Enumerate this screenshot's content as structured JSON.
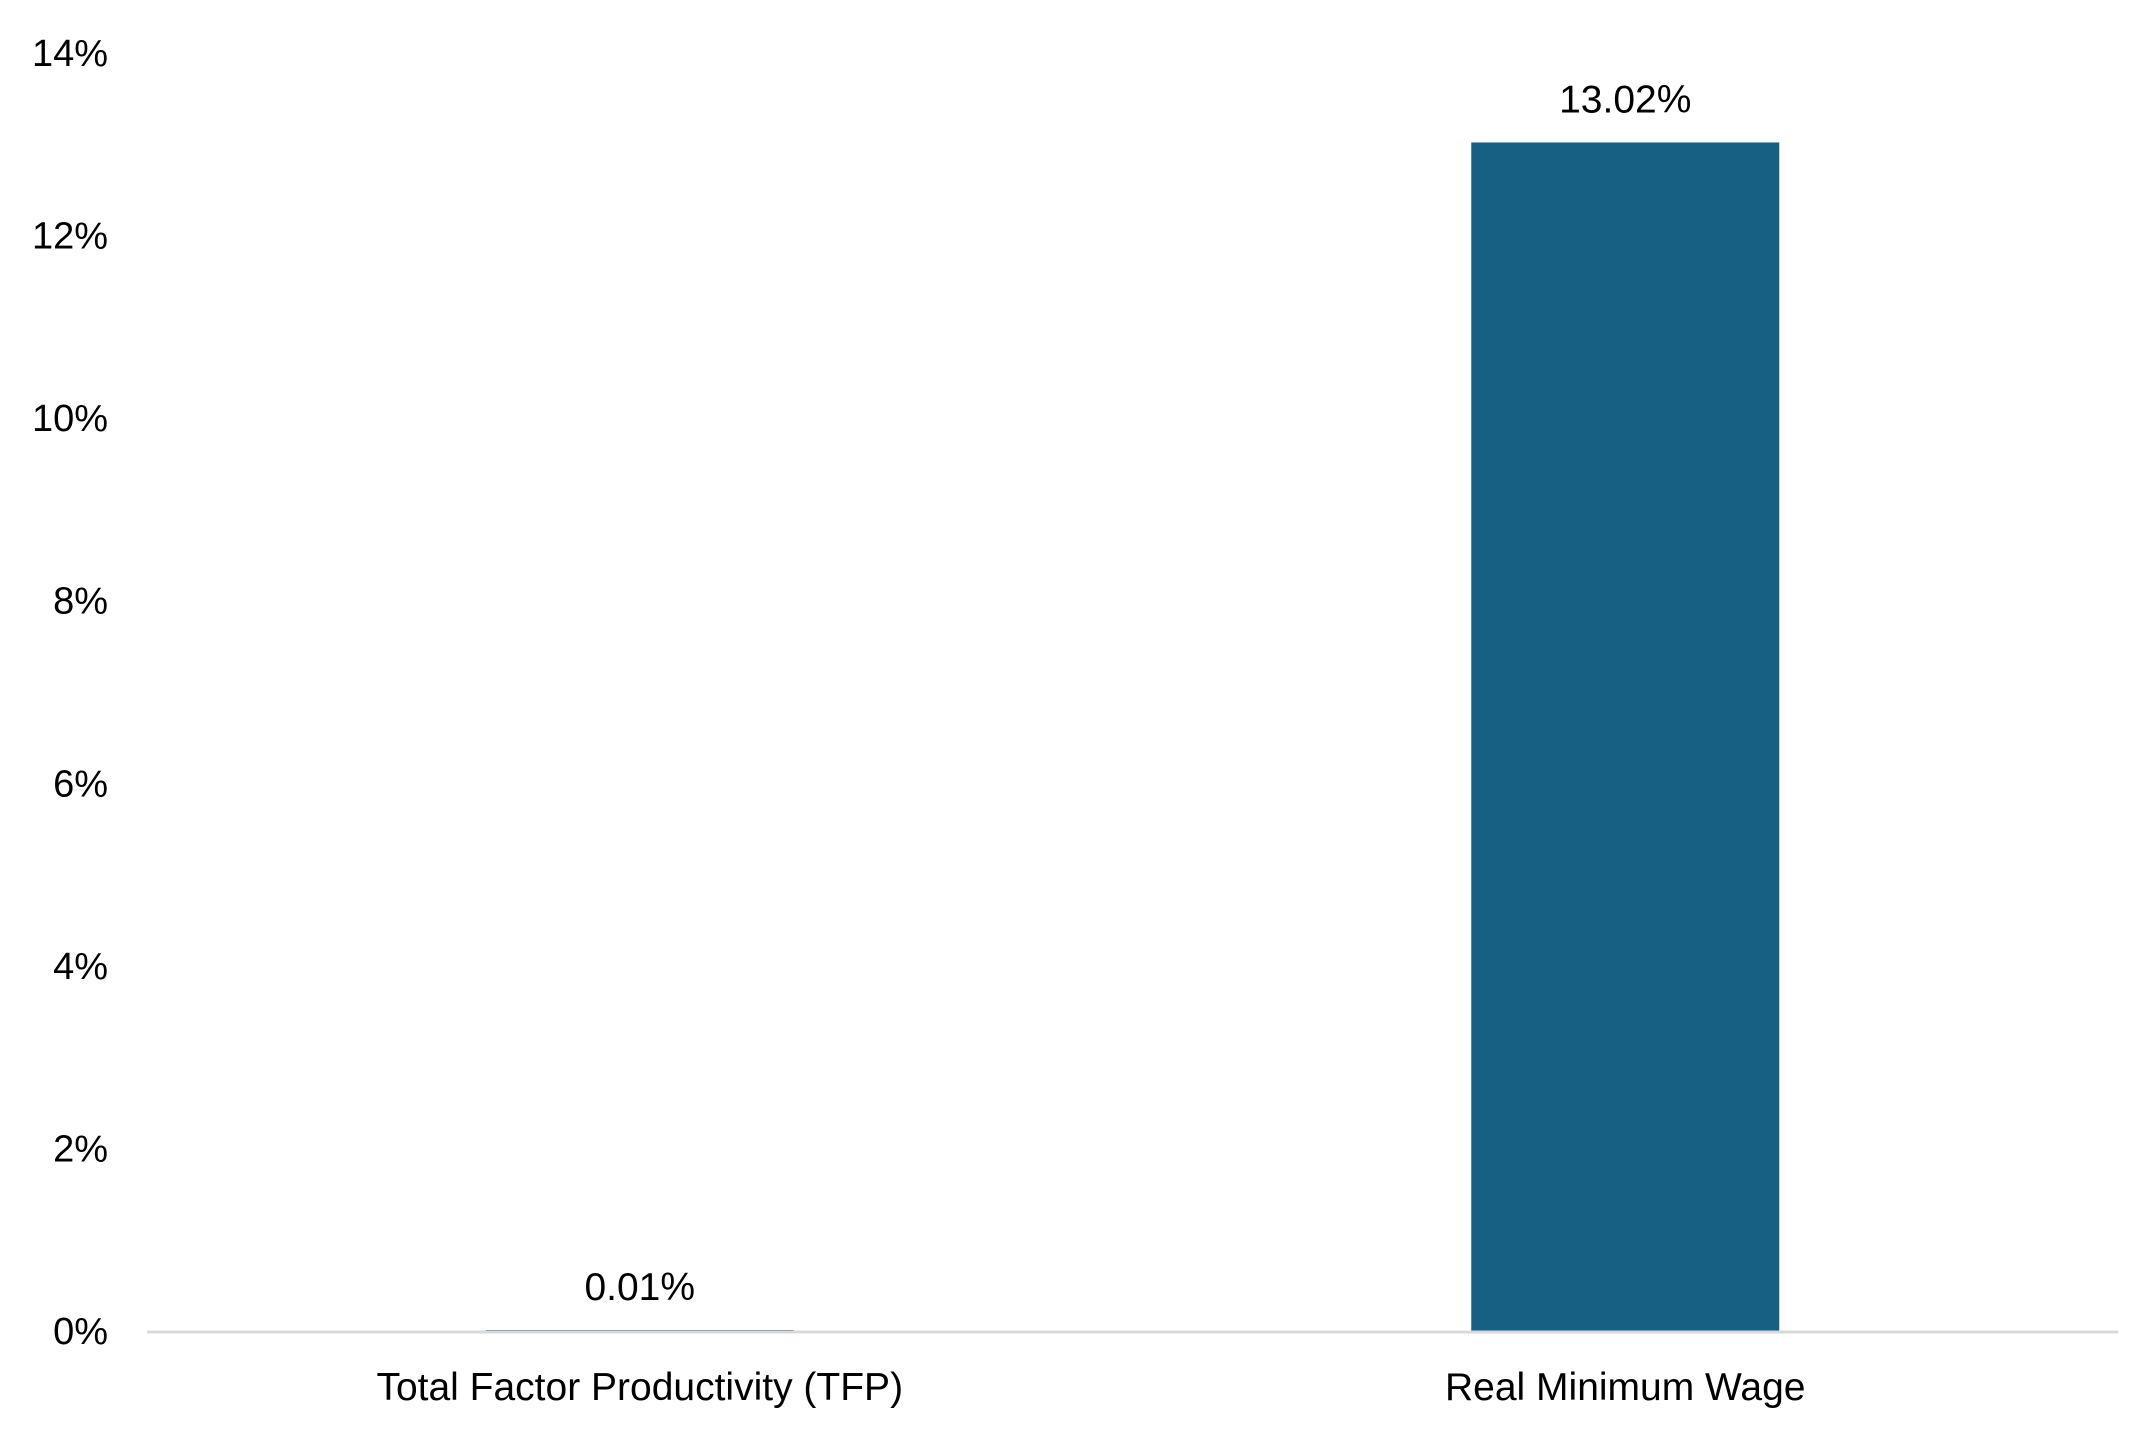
{
  "chart_data": {
    "type": "bar",
    "title": "",
    "xlabel": "",
    "ylabel": "",
    "categories": [
      "Total Factor Productivity (TFP)",
      "Real Minimum Wage"
    ],
    "values": [
      0.01,
      13.02
    ],
    "data_labels": [
      "0.01%",
      "13.02%"
    ],
    "ylim": [
      0,
      14
    ],
    "yticks": [
      0,
      2,
      4,
      6,
      8,
      10,
      12,
      14
    ],
    "ytick_labels": [
      "0%",
      "2%",
      "4%",
      "6%",
      "8%",
      "10%",
      "12%",
      "14%"
    ],
    "grid": false,
    "legend": "none",
    "bar_color": "#176083",
    "axis_color": "#d9d9d9"
  }
}
